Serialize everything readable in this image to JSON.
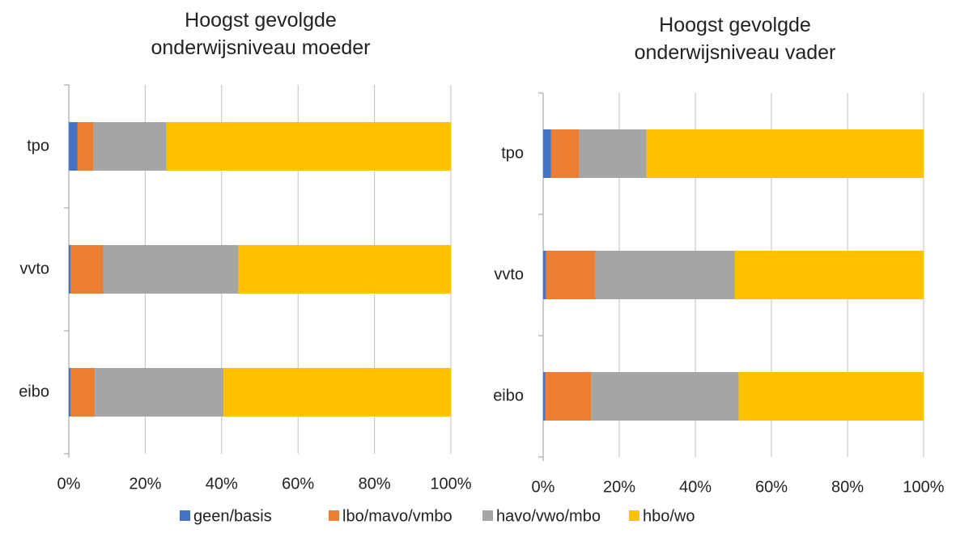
{
  "chart_data": [
    {
      "type": "stacked_barh",
      "title": "Hoogst gevolgde onderwijsniveau moeder",
      "categories": [
        "tpo",
        "vvto",
        "eibo"
      ],
      "series": [
        {
          "name": "geen/basis",
          "color": "#4472c4",
          "values": [
            2.3,
            0.5,
            0.5
          ]
        },
        {
          "name": "lbo/mavo/vmbo",
          "color": "#ed7d31",
          "values": [
            4.2,
            8.5,
            6.3
          ]
        },
        {
          "name": "havo/vwo/mbo",
          "color": "#a5a5a5",
          "values": [
            19.1,
            35.4,
            33.7
          ]
        },
        {
          "name": "hbo/wo",
          "color": "#ffc000",
          "values": [
            74.4,
            55.6,
            59.5
          ]
        }
      ],
      "xlim": [
        0,
        100
      ],
      "xticks": [
        {
          "value": 0,
          "label": "0%"
        },
        {
          "value": 20,
          "label": "20%"
        },
        {
          "value": 40,
          "label": "40%"
        },
        {
          "value": 60,
          "label": "60%"
        },
        {
          "value": 80,
          "label": "80%"
        },
        {
          "value": 100,
          "label": "100%"
        }
      ],
      "grid": true,
      "legend": "bottom"
    },
    {
      "type": "stacked_barh",
      "title": "Hoogst gevolgde onderwijsniveau vader",
      "categories": [
        "tpo",
        "vvto",
        "eibo"
      ],
      "series": [
        {
          "name": "geen/basis",
          "color": "#4472c4",
          "values": [
            2.1,
            0.8,
            0.6
          ]
        },
        {
          "name": "lbo/mavo/vmbo",
          "color": "#ed7d31",
          "values": [
            7.4,
            13.0,
            12.1
          ]
        },
        {
          "name": "havo/vwo/mbo",
          "color": "#a5a5a5",
          "values": [
            17.7,
            36.6,
            38.7
          ]
        },
        {
          "name": "hbo/wo",
          "color": "#ffc000",
          "values": [
            72.8,
            49.6,
            48.6
          ]
        }
      ],
      "xlim": [
        0,
        100
      ],
      "xticks": [
        {
          "value": 0,
          "label": "0%"
        },
        {
          "value": 20,
          "label": "20%"
        },
        {
          "value": 40,
          "label": "40%"
        },
        {
          "value": 60,
          "label": "60%"
        },
        {
          "value": 80,
          "label": "80%"
        },
        {
          "value": 100,
          "label": "100%"
        }
      ],
      "grid": true
    }
  ]
}
